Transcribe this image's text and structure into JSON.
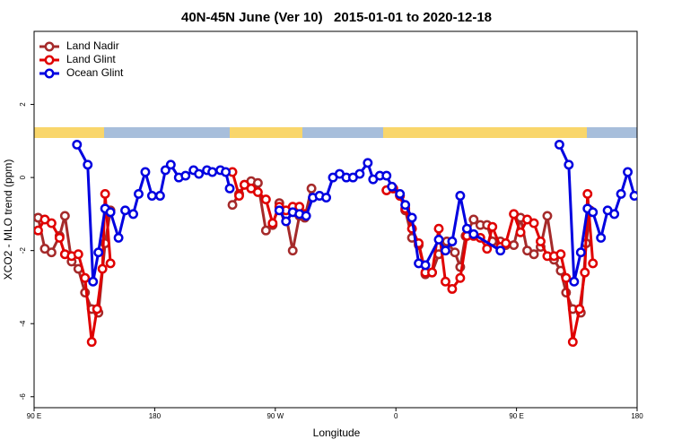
{
  "chart_data": {
    "type": "line",
    "title": "40N-45N June (Ver 10)   2015-01-01 to 2020-12-18",
    "x_label": "Longitude",
    "y_label": "XCO2 - MLO trend (ppm)",
    "xlim": [
      90,
      540
    ],
    "xticks": [
      {
        "value": 90,
        "label": "90 E"
      },
      180,
      {
        "value": 270,
        "label": "90 W"
      },
      {
        "value": 360,
        "label": "0"
      },
      {
        "value": 450,
        "label": "90 E"
      },
      {
        "value": 540,
        "label": "180"
      }
    ],
    "ylim": [
      -6.3,
      4
    ],
    "yticks": [
      -6,
      -4,
      -2,
      0,
      2
    ],
    "legend": "topleft",
    "series": [
      {
        "name": "Land Nadir",
        "color": "#a52a2a",
        "x": [
          93,
          98,
          103,
          109,
          113,
          118,
          123,
          128,
          133,
          138,
          143,
          147,
          190,
          238,
          243,
          247,
          252,
          257,
          263,
          268,
          273,
          278,
          283,
          288,
          292,
          297,
          325,
          353,
          358,
          363,
          367,
          372,
          377,
          382,
          387,
          392,
          398,
          404,
          408,
          412,
          418,
          423,
          428,
          432,
          438,
          442,
          448,
          453,
          458,
          463,
          468,
          473,
          478,
          483,
          487,
          492,
          498,
          502,
          505
        ],
        "values": [
          -1.1,
          -1.95,
          -2.05,
          -1.6,
          -1.05,
          -2.3,
          -2.5,
          -3.15,
          -3.6,
          -3.7,
          -1.8,
          -0.9,
          null,
          -0.75,
          -0.45,
          -0.2,
          -0.1,
          -0.15,
          -1.45,
          -1.3,
          -0.7,
          -1.05,
          -2.0,
          -1.05,
          -1.1,
          -0.3,
          null,
          -0.35,
          -0.3,
          -0.5,
          -0.9,
          -1.65,
          -1.85,
          -2.65,
          -2.6,
          -2.1,
          -1.75,
          -2.05,
          -2.45,
          -1.6,
          -1.15,
          -1.3,
          -1.3,
          -1.75,
          -1.75,
          -1.85,
          -1.85,
          -1.1,
          -2.0,
          -2.1,
          -1.9,
          -1.05,
          -2.25,
          -2.55,
          -3.15,
          -3.6,
          -3.7,
          -1.8,
          -0.9
        ]
      },
      {
        "name": "Land Glint",
        "color": "#e00000",
        "x": [
          93,
          98,
          103,
          109,
          113,
          118,
          123,
          128,
          133,
          137,
          141,
          143,
          147,
          190,
          238,
          243,
          247,
          252,
          257,
          263,
          268,
          273,
          278,
          283,
          288,
          292,
          325,
          353,
          358,
          363,
          367,
          372,
          377,
          382,
          387,
          392,
          397,
          402,
          408,
          413,
          418,
          423,
          428,
          432,
          438,
          442,
          448,
          453,
          458,
          463,
          468,
          473,
          478,
          483,
          487,
          492,
          497,
          501,
          503,
          507
        ],
        "values": [
          -1.45,
          -1.15,
          -1.25,
          -1.65,
          -2.1,
          -2.15,
          -2.1,
          -2.75,
          -4.5,
          -3.6,
          -2.5,
          -0.45,
          -2.35,
          null,
          0.15,
          -0.5,
          -0.2,
          -0.3,
          -0.4,
          -0.6,
          -1.25,
          -0.8,
          -0.9,
          -0.8,
          -0.8,
          -1.0,
          null,
          -0.35,
          -0.3,
          -0.5,
          -0.85,
          -1.4,
          -1.8,
          -2.6,
          -2.6,
          -1.4,
          -2.85,
          -3.05,
          -2.75,
          -1.6,
          -1.6,
          -1.65,
          -1.95,
          -1.35,
          -1.9,
          -1.8,
          -1.0,
          -1.5,
          -1.15,
          -1.25,
          -1.75,
          -2.15,
          -2.15,
          -2.1,
          -2.75,
          -4.5,
          -3.6,
          -2.6,
          -0.45,
          -2.35
        ]
      },
      {
        "name": "Ocean Glint",
        "color": "#0000e0",
        "x": [
          122,
          130,
          134,
          138,
          143,
          147,
          153,
          158,
          164,
          168,
          173,
          178,
          184,
          188,
          192,
          198,
          203,
          209,
          213,
          219,
          223,
          229,
          233,
          236,
          255,
          273,
          278,
          283,
          288,
          293,
          298,
          303,
          308,
          313,
          318,
          323,
          328,
          333,
          339,
          343,
          348,
          353,
          357,
          363,
          367,
          372,
          377,
          382,
          392,
          397,
          402,
          408,
          413,
          418,
          438,
          460,
          482,
          489,
          493,
          498,
          503,
          507,
          513,
          518,
          523,
          528,
          533,
          538
        ],
        "values": [
          0.9,
          0.35,
          -2.85,
          -2.05,
          -0.85,
          -0.95,
          -1.65,
          -0.9,
          -1.0,
          -0.45,
          0.15,
          -0.5,
          -0.5,
          0.2,
          0.35,
          0,
          0.05,
          0.2,
          0.1,
          0.2,
          0.15,
          0.2,
          0.15,
          -0.3,
          null,
          -0.9,
          -1.2,
          -0.95,
          -1.0,
          -1.05,
          -0.55,
          -0.5,
          -0.55,
          0,
          0.1,
          0,
          0,
          0.1,
          0.4,
          -0.05,
          0.05,
          0.05,
          -0.25,
          -0.45,
          -0.75,
          -1.1,
          -2.35,
          -2.4,
          -1.7,
          -2.0,
          -1.75,
          -0.5,
          -1.4,
          -1.55,
          -2.0,
          null,
          0.9,
          0.35,
          -2.85,
          -2.05,
          -0.85,
          -0.95,
          -1.65,
          -0.9,
          -1.0,
          -0.45,
          0.15,
          -0.5
        ]
      }
    ]
  }
}
